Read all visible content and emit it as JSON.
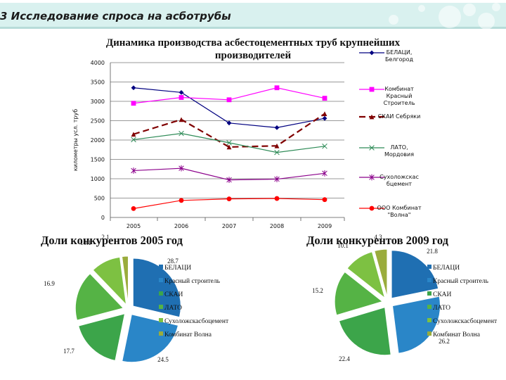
{
  "slide_title": "3 Исследование спроса на асботрубы",
  "colors": {
    "title_band": "#d9f1ef",
    "accent_band": "#cfe9e7"
  },
  "chart_data": [
    {
      "type": "line",
      "title": "Динамика производства асбестоцементных труб крупнейших производителей",
      "ylabel": "километры усл. труб",
      "xlabel": "",
      "categories": [
        "2005",
        "2006",
        "2007",
        "2008",
        "2009"
      ],
      "ylim": [
        0,
        4000
      ],
      "yticks": [
        0,
        500,
        1000,
        1500,
        2000,
        2500,
        3000,
        3500,
        4000
      ],
      "series": [
        {
          "name": "БЕЛАЦИ, Белгород",
          "color": "#000080",
          "marker": "diamond",
          "dash": "",
          "values": [
            3350,
            3230,
            2440,
            2320,
            2560
          ]
        },
        {
          "name": "Комбинат Красный Строитель",
          "color": "#ff00ff",
          "marker": "square",
          "dash": "",
          "values": [
            2950,
            3100,
            3040,
            3350,
            3080
          ]
        },
        {
          "name": "СКАИ Себряки",
          "color": "#800000",
          "marker": "triangle",
          "dash": "9,5",
          "values": [
            2150,
            2530,
            1820,
            1850,
            2680
          ]
        },
        {
          "name": "ЛАТО, Мордовия",
          "color": "#2e8b57",
          "marker": "x",
          "dash": "",
          "values": [
            2010,
            2170,
            1930,
            1680,
            1840
          ]
        },
        {
          "name": "Сухоложскас бцемент",
          "color": "#8b008b",
          "marker": "star",
          "dash": "",
          "values": [
            1210,
            1270,
            970,
            990,
            1140
          ]
        },
        {
          "name": "ООО Комбинат \"Волна\"",
          "color": "#ff0000",
          "marker": "circle",
          "dash": "",
          "values": [
            230,
            440,
            480,
            490,
            460
          ]
        }
      ]
    },
    {
      "type": "pie",
      "title": "Доли конкурентов 2005 год",
      "labels": [
        "БЕЛАЦИ",
        "Красный строитель",
        "СКАИ",
        "ЛАТО",
        "Сухоложскасбоцемент",
        "Комбинат Волна"
      ],
      "values": [
        28.7,
        24.5,
        17.7,
        16.9,
        10.1,
        2.1
      ],
      "value_labels": [
        "28.7",
        "24.5",
        "17.7",
        "16.9",
        "10.1",
        "2.1"
      ],
      "colors": [
        "#1f6fb2",
        "#2a86c8",
        "#3ca54a",
        "#55b345",
        "#7dc142",
        "#9aac3c"
      ]
    },
    {
      "type": "pie",
      "title": "Доли конкурентов 2009 год",
      "labels": [
        "БЕЛАЦИ",
        "Красный строитель",
        "СКАИ",
        "ЛАТО",
        "Сухоложскасбоцемент",
        "Комбинат Волна"
      ],
      "values": [
        21.8,
        26.2,
        22.4,
        15.2,
        10.1,
        4.3
      ],
      "value_labels": [
        "21.8",
        "26.2",
        "22.4",
        "15.2",
        "10.1",
        "4.3"
      ],
      "colors": [
        "#1f6fb2",
        "#2a86c8",
        "#3ca54a",
        "#55b345",
        "#7dc142",
        "#9aac3c"
      ]
    }
  ]
}
